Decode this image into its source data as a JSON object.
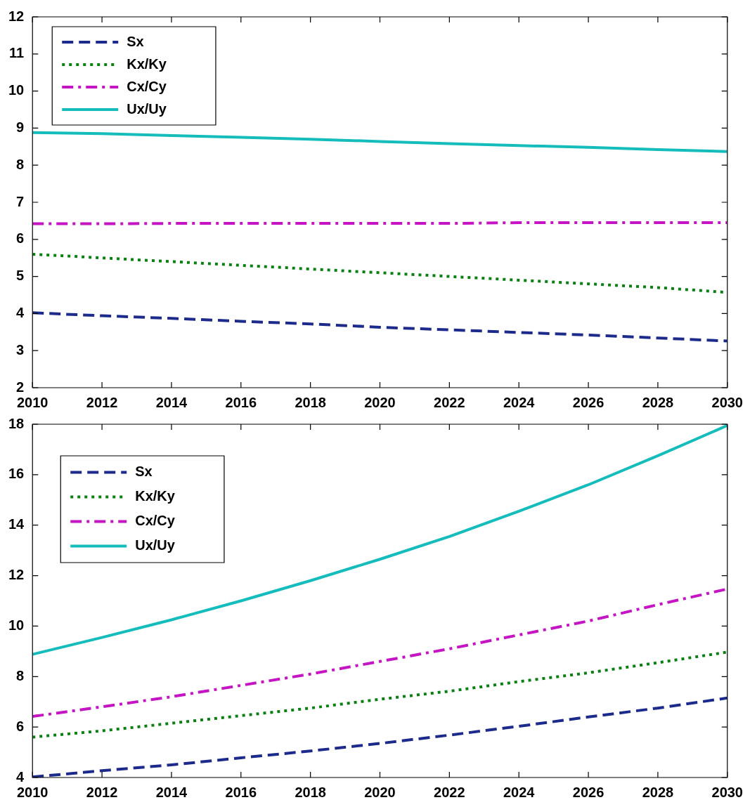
{
  "chart_data": [
    {
      "type": "line",
      "x": [
        2010,
        2012,
        2014,
        2016,
        2018,
        2020,
        2022,
        2024,
        2026,
        2028,
        2030
      ],
      "xlim": [
        2010,
        2030
      ],
      "xticks": [
        2010,
        2012,
        2014,
        2016,
        2018,
        2020,
        2022,
        2024,
        2026,
        2028,
        2030
      ],
      "ylim": [
        2,
        12
      ],
      "yticks": [
        2,
        3,
        4,
        5,
        6,
        7,
        8,
        9,
        10,
        11,
        12
      ],
      "grid": false,
      "legend": "top left",
      "marker": "none",
      "series": [
        {
          "name": "Sx",
          "color": "#1c2a8c",
          "line_style": "dashed",
          "values": [
            4.02,
            3.94,
            3.87,
            3.79,
            3.72,
            3.63,
            3.56,
            3.49,
            3.42,
            3.34,
            3.26
          ]
        },
        {
          "name": "Kx/Ky",
          "color": "#0a8012",
          "line_style": "dotted",
          "values": [
            5.6,
            5.5,
            5.4,
            5.3,
            5.2,
            5.1,
            5.0,
            4.9,
            4.8,
            4.7,
            4.57
          ]
        },
        {
          "name": "Cx/Cy",
          "color": "#c414c4",
          "line_style": "dashdot",
          "values": [
            6.42,
            6.42,
            6.43,
            6.43,
            6.43,
            6.43,
            6.43,
            6.45,
            6.45,
            6.45,
            6.45
          ]
        },
        {
          "name": "Ux/Uy",
          "color": "#14bcbc",
          "line_style": "solid",
          "values": [
            8.88,
            8.85,
            8.8,
            8.75,
            8.7,
            8.64,
            8.58,
            8.53,
            8.48,
            8.42,
            8.37
          ]
        }
      ]
    },
    {
      "type": "line",
      "x": [
        2010,
        2012,
        2014,
        2016,
        2018,
        2020,
        2022,
        2024,
        2026,
        2028,
        2030
      ],
      "xlim": [
        2010,
        2030
      ],
      "xticks": [
        2010,
        2012,
        2014,
        2016,
        2018,
        2020,
        2022,
        2024,
        2026,
        2028,
        2030
      ],
      "ylim": [
        4,
        18
      ],
      "yticks": [
        4,
        6,
        8,
        10,
        12,
        14,
        16,
        18
      ],
      "grid": false,
      "legend": "top left",
      "marker": "none",
      "series": [
        {
          "name": "Sx",
          "color": "#1c2a8c",
          "line_style": "dashed",
          "values": [
            4.02,
            4.27,
            4.5,
            4.78,
            5.05,
            5.35,
            5.68,
            6.03,
            6.4,
            6.75,
            7.15
          ]
        },
        {
          "name": "Kx/Ky",
          "color": "#0a8012",
          "line_style": "dotted",
          "values": [
            5.6,
            5.85,
            6.15,
            6.45,
            6.75,
            7.1,
            7.42,
            7.8,
            8.15,
            8.55,
            8.97
          ]
        },
        {
          "name": "Cx/Cy",
          "color": "#c414c4",
          "line_style": "dashdot",
          "values": [
            6.42,
            6.8,
            7.2,
            7.65,
            8.1,
            8.6,
            9.1,
            9.65,
            10.2,
            10.85,
            11.47
          ]
        },
        {
          "name": "Ux/Uy",
          "color": "#14bcbc",
          "line_style": "solid",
          "values": [
            8.88,
            9.55,
            10.25,
            11.0,
            11.8,
            12.65,
            13.55,
            14.55,
            15.6,
            16.75,
            17.95
          ]
        }
      ]
    }
  ]
}
